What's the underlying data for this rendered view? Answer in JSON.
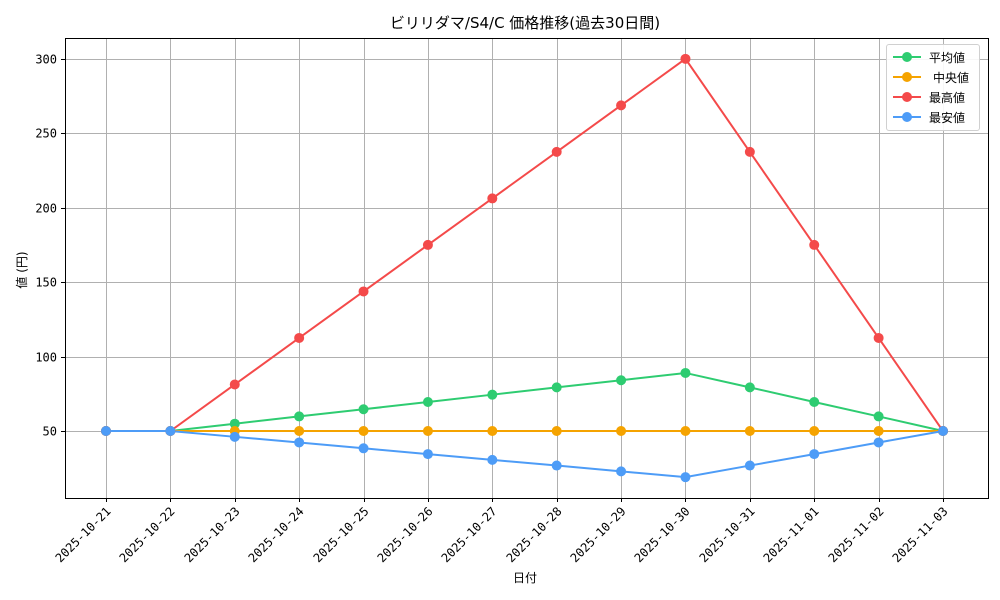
{
  "chart_data": {
    "type": "line",
    "title": "ビリリダマ/S4/C 価格推移(過去30日間)",
    "xlabel": "日付",
    "ylabel": "値 (円)",
    "categories": [
      "2025-10-21",
      "2025-10-22",
      "2025-10-23",
      "2025-10-24",
      "2025-10-25",
      "2025-10-26",
      "2025-10-27",
      "2025-10-28",
      "2025-10-29",
      "2025-10-30",
      "2025-10-31",
      "2025-11-01",
      "2025-11-02",
      "2025-11-03"
    ],
    "series": [
      {
        "name": "平均値",
        "color": "#2ecc71",
        "values": [
          50,
          50,
          54.9,
          59.8,
          64.6,
          69.5,
          74.4,
          79.3,
          84.1,
          89,
          79.3,
          69.5,
          59.8,
          50
        ]
      },
      {
        "name": "中央値",
        "color": "#f5a300",
        "values": [
          50,
          50,
          50,
          50,
          50,
          50,
          50,
          50,
          50,
          50,
          50,
          50,
          50,
          50
        ]
      },
      {
        "name": "最高値",
        "color": "#f44a4a",
        "values": [
          50,
          50,
          81.25,
          112.5,
          143.75,
          175,
          206.25,
          237.5,
          268.75,
          300,
          237.5,
          175,
          112.5,
          50
        ]
      },
      {
        "name": "最安値",
        "color": "#4d9cf7",
        "values": [
          50,
          50,
          46.1,
          42.3,
          38.4,
          34.5,
          30.6,
          26.8,
          22.9,
          19,
          26.8,
          34.5,
          42.3,
          50
        ]
      }
    ],
    "yticks": [
      50,
      100,
      150,
      200,
      250,
      300
    ],
    "ylim": [
      5,
      314
    ],
    "grid": true,
    "legend_position": "upper right"
  }
}
